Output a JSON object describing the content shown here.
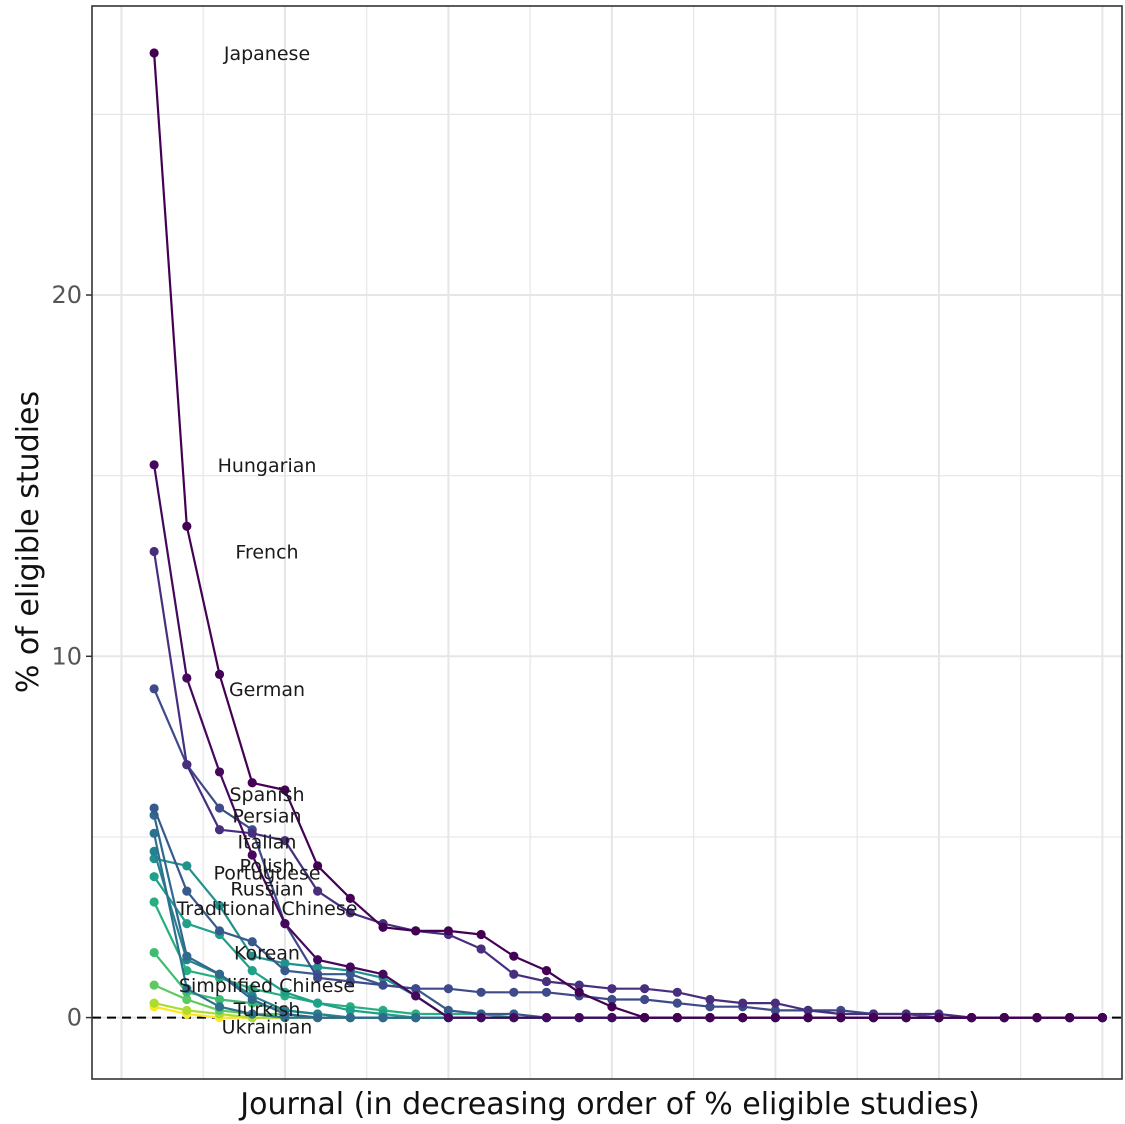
{
  "chart_data": {
    "type": "line",
    "title": "",
    "xlabel": "Journal (in decreasing order of % eligible studies)",
    "ylabel": "% of eligible studies",
    "x_range": [
      -0.9,
      30.6
    ],
    "ylim": [
      -1.7,
      28.0
    ],
    "y_ticks": [
      0,
      10,
      20
    ],
    "grid": true,
    "reference_line": {
      "y": 0,
      "style": "dashed"
    },
    "legend": "direct-labels-left",
    "x": [
      1,
      2,
      3,
      4,
      5,
      6,
      7,
      8,
      9,
      10,
      11,
      12,
      13,
      14,
      15,
      16,
      17,
      18,
      19,
      20,
      21,
      22,
      23,
      24,
      25,
      26,
      27,
      28,
      29,
      30
    ],
    "series": [
      {
        "name": "Japanese",
        "color": "#440154",
        "values": [
          26.7,
          13.6,
          9.5,
          6.5,
          6.3,
          4.2,
          3.3,
          2.5,
          2.4,
          2.4,
          2.3,
          1.7,
          1.3,
          0.7,
          0.3,
          0,
          0,
          0,
          0,
          0,
          0,
          0,
          0,
          0,
          0,
          0,
          0,
          0,
          0,
          0
        ]
      },
      {
        "name": "Hungarian",
        "color": "#46085c",
        "values": [
          15.3,
          9.4,
          6.8,
          4.5,
          2.6,
          1.6,
          1.4,
          1.2,
          0.6,
          0,
          0,
          0,
          0,
          0,
          0,
          0,
          0,
          0,
          0,
          0,
          0,
          0,
          0,
          0,
          0,
          0,
          0,
          0,
          0,
          0
        ]
      },
      {
        "name": "French",
        "color": "#472f7d",
        "values": [
          12.9,
          7.0,
          5.2,
          5.1,
          4.9,
          3.5,
          2.9,
          2.6,
          2.4,
          2.3,
          1.9,
          1.2,
          1.0,
          0.9,
          0.8,
          0.8,
          0.7,
          0.5,
          0.4,
          0.4,
          0.2,
          0.1,
          0.1,
          0.1,
          0.1,
          0,
          0,
          0,
          0,
          0
        ]
      },
      {
        "name": "German",
        "color": "#3e4a89",
        "values": [
          9.1,
          7.0,
          5.8,
          5.2,
          2.6,
          1.1,
          1.0,
          0.9,
          0.8,
          0.8,
          0.7,
          0.7,
          0.7,
          0.6,
          0.5,
          0.5,
          0.4,
          0.3,
          0.3,
          0.2,
          0.2,
          0.2,
          0.1,
          0.1,
          0,
          0,
          0,
          0,
          0,
          0
        ]
      },
      {
        "name": "Spanish",
        "color": "#375a8c",
        "values": [
          5.8,
          3.5,
          2.4,
          2.1,
          1.3,
          1.2,
          1.2,
          0.9,
          0.8,
          0.2,
          0.1,
          0.1,
          0,
          0,
          0,
          0,
          0,
          0,
          0,
          0,
          0,
          0,
          0,
          0,
          0,
          0,
          0,
          0,
          0,
          0
        ]
      },
      {
        "name": "Persian",
        "color": "#31688e",
        "values": [
          5.6,
          1.7,
          1.2,
          0.5,
          0.1,
          0,
          0,
          0,
          0,
          0,
          0,
          0,
          0,
          0,
          0,
          0,
          0,
          0,
          0,
          0,
          0,
          0,
          0,
          0,
          0,
          0,
          0,
          0,
          0,
          0
        ]
      },
      {
        "name": "Italian",
        "color": "#2c728e",
        "values": [
          5.1,
          0.8,
          0.3,
          0.1,
          0,
          0,
          0,
          0,
          0,
          0,
          0,
          0,
          0,
          0,
          0,
          0,
          0,
          0,
          0,
          0,
          0,
          0,
          0,
          0,
          0,
          0,
          0,
          0,
          0,
          0
        ]
      },
      {
        "name": "Polish",
        "color": "#26828e",
        "values": [
          4.6,
          1.6,
          1.2,
          0.6,
          0.2,
          0.1,
          0,
          0,
          0,
          0,
          0,
          0,
          0,
          0,
          0,
          0,
          0,
          0,
          0,
          0,
          0,
          0,
          0,
          0,
          0,
          0,
          0,
          0,
          0,
          0
        ]
      },
      {
        "name": "Portuguese",
        "color": "#21918c",
        "values": [
          4.4,
          4.2,
          3.1,
          1.7,
          1.5,
          1.4,
          1.3,
          1.1,
          0.6,
          0,
          0,
          0,
          0,
          0,
          0,
          0,
          0,
          0,
          0,
          0,
          0,
          0,
          0,
          0,
          0,
          0,
          0,
          0,
          0,
          0
        ]
      },
      {
        "name": "Russian",
        "color": "#1fa088",
        "values": [
          3.9,
          2.6,
          2.3,
          1.3,
          0.7,
          0.4,
          0.2,
          0.1,
          0,
          0,
          0,
          0,
          0,
          0,
          0,
          0,
          0,
          0,
          0,
          0,
          0,
          0,
          0,
          0,
          0,
          0,
          0,
          0,
          0,
          0
        ]
      },
      {
        "name": "Traditional Chinese",
        "color": "#28ae80",
        "values": [
          3.2,
          1.3,
          1.1,
          0.8,
          0.6,
          0.4,
          0.3,
          0.2,
          0.1,
          0.1,
          0.1,
          0,
          0,
          0,
          0,
          0,
          0,
          0,
          0,
          0,
          0,
          0,
          0,
          0,
          0,
          0,
          0,
          0,
          0,
          0
        ]
      },
      {
        "name": "Korean",
        "color": "#3fbc73",
        "values": [
          1.8,
          0.7,
          0.5,
          0.4,
          0.2,
          0.1,
          0,
          0,
          0,
          0,
          0,
          0,
          0,
          0,
          0,
          0,
          0,
          0,
          0,
          0,
          0,
          0,
          0,
          0,
          0,
          0,
          0,
          0,
          0,
          0
        ]
      },
      {
        "name": "Simplified Chinese",
        "color": "#5ec962",
        "values": [
          0.9,
          0.5,
          0.2,
          0.1,
          0.1,
          0,
          0,
          0,
          0,
          0,
          0,
          0,
          0,
          0,
          0,
          0,
          0,
          0,
          0,
          0,
          0,
          0,
          0,
          0,
          0,
          0,
          0,
          0,
          0,
          0
        ]
      },
      {
        "name": "Turkish",
        "color": "#addc30",
        "values": [
          0.4,
          0.2,
          0.1,
          0,
          0,
          0,
          0,
          0,
          0,
          0,
          0,
          0,
          0,
          0,
          0,
          0,
          0,
          0,
          0,
          0,
          0,
          0,
          0,
          0,
          0,
          0,
          0,
          0,
          0,
          0
        ]
      },
      {
        "name": "Ukrainian",
        "color": "#fde725",
        "values": [
          0.3,
          0.1,
          0,
          0,
          0,
          0,
          0,
          0,
          0,
          0,
          0,
          0,
          0,
          0,
          0,
          0,
          0,
          0,
          0,
          0,
          0,
          0,
          0,
          0,
          0,
          0,
          0,
          0,
          0,
          0
        ]
      }
    ]
  }
}
